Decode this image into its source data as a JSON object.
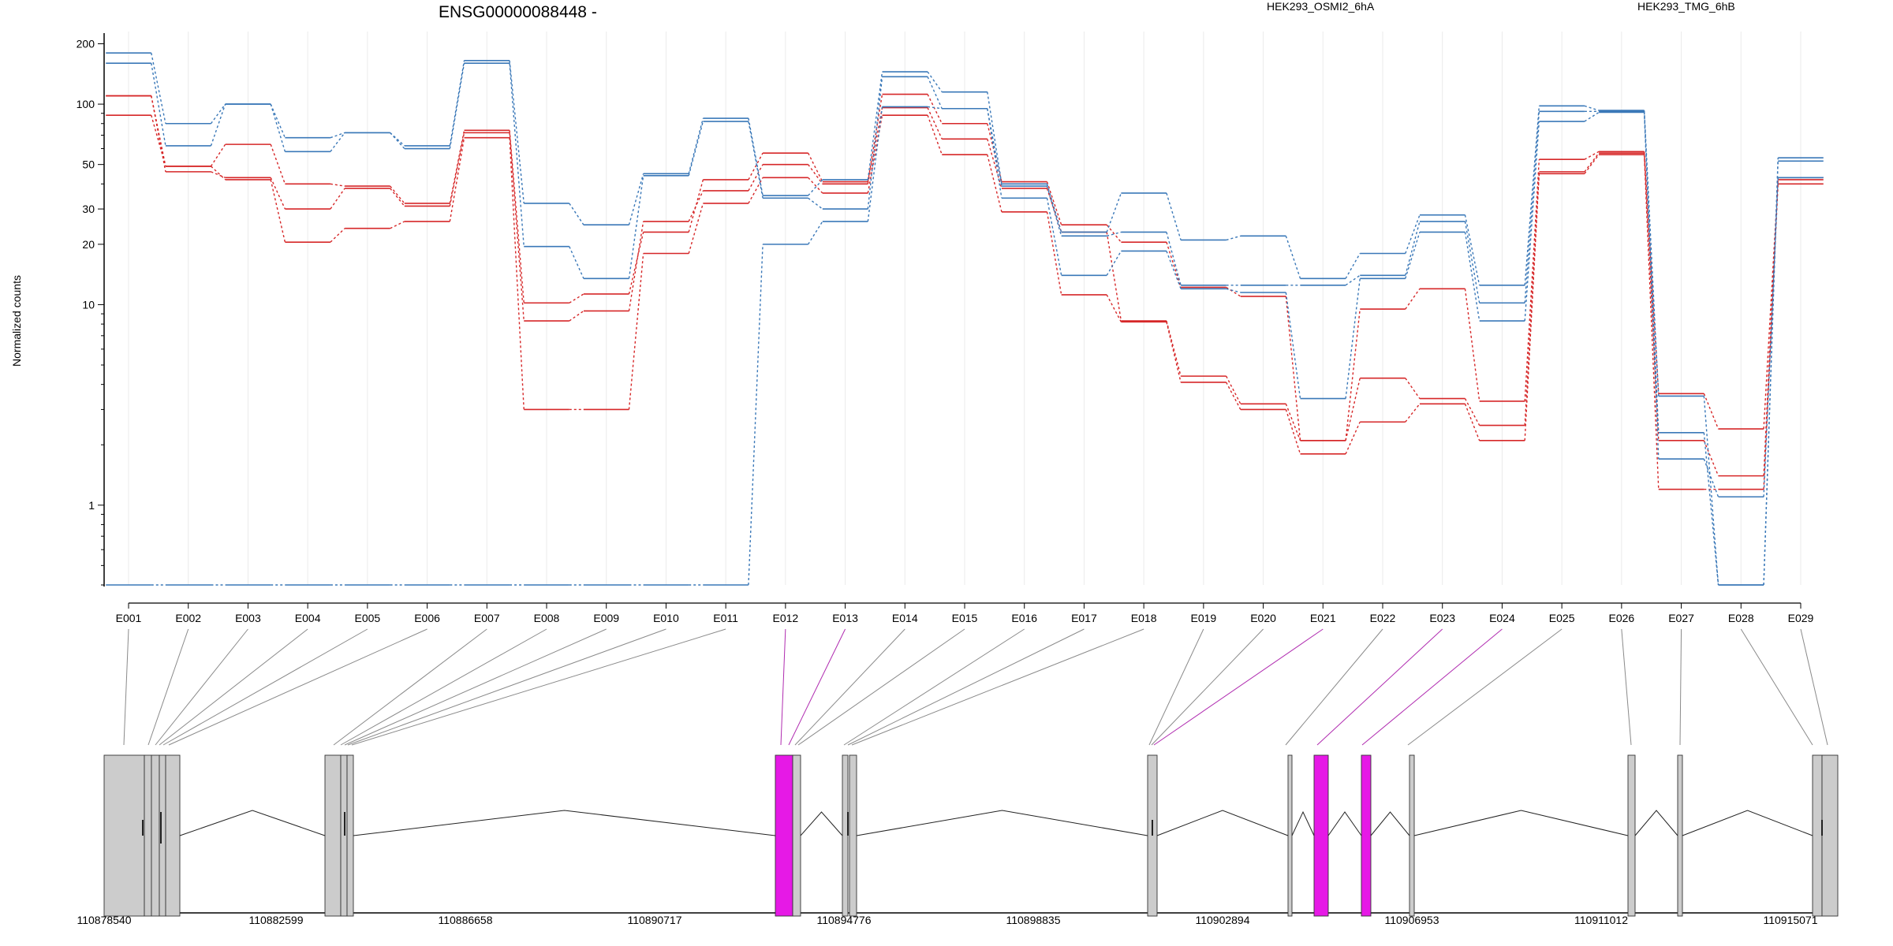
{
  "chart_data": {
    "type": "line",
    "title": "ENSG00000088448 -",
    "ylabel": "Normalized counts",
    "yscale": "log",
    "ylim": [
      0.4,
      220
    ],
    "yticks": [
      1,
      10,
      20,
      30,
      50,
      100,
      200
    ],
    "grid": true,
    "legend_placement": "top-right",
    "categories": [
      "E001",
      "E002",
      "E003",
      "E004",
      "E005",
      "E006",
      "E007",
      "E008",
      "E009",
      "E010",
      "E011",
      "E012",
      "E013",
      "E014",
      "E015",
      "E016",
      "E017",
      "E018",
      "E019",
      "E020",
      "E021",
      "E022",
      "E023",
      "E024",
      "E025",
      "E026",
      "E027",
      "E028",
      "E029"
    ],
    "legend": [
      {
        "label": "HEK293_OSMI2_6hA",
        "color": "#d62728"
      },
      {
        "label": "HEK293_TMG_6hB",
        "color": "#3a78b8"
      }
    ],
    "series": [
      {
        "group": 0,
        "color": "#d62728",
        "values": [
          110,
          49,
          63,
          40,
          39,
          32,
          74,
          10.2,
          11.3,
          23,
          42,
          57,
          41,
          112,
          80,
          41,
          25,
          20.5,
          12.2,
          11,
          2.1,
          9.5,
          12,
          3.3,
          53,
          58,
          3.6,
          2.4,
          42
        ]
      },
      {
        "group": 0,
        "color": "#d62728",
        "values": [
          110,
          46,
          43,
          30,
          38,
          31,
          72,
          8.3,
          9.3,
          26,
          37,
          50,
          40,
          96,
          67,
          38,
          23,
          8.3,
          4.4,
          3.2,
          2.1,
          4.3,
          3.4,
          2.5,
          46,
          57,
          2.1,
          1.4,
          43
        ]
      },
      {
        "group": 0,
        "color": "#d62728",
        "values": [
          88,
          49,
          42,
          20.5,
          24,
          26,
          68,
          3,
          3,
          18,
          32,
          43,
          36,
          88,
          56,
          29,
          11.2,
          8.2,
          4.1,
          3,
          1.8,
          2.6,
          3.2,
          2.1,
          45,
          56,
          1.2,
          1.2,
          40
        ]
      },
      {
        "group": 1,
        "color": "#3a78b8",
        "values": [
          180,
          80,
          100,
          68,
          72,
          62,
          165,
          32,
          25,
          45,
          85,
          35,
          42,
          145,
          115,
          40,
          23,
          36,
          21,
          22,
          13.5,
          18,
          28,
          12.5,
          98,
          93,
          3.5,
          0.4,
          54
        ]
      },
      {
        "group": 1,
        "color": "#3a78b8",
        "values": [
          160,
          62,
          100,
          58,
          72,
          60,
          160,
          19.5,
          13.5,
          44,
          82,
          34,
          30,
          137,
          95,
          39,
          22,
          23,
          12.5,
          12.5,
          12.5,
          14,
          26,
          10.2,
          92,
          92,
          2.3,
          0.4,
          52
        ]
      },
      {
        "group": 1,
        "color": "#3a78b8",
        "values": [
          0.4,
          0.4,
          0.4,
          0.4,
          0.4,
          0.4,
          0.4,
          0.4,
          0.4,
          0.4,
          0.4,
          20,
          26,
          97,
          95,
          34,
          14,
          18.5,
          12,
          11.5,
          3.4,
          13.5,
          23,
          8.3,
          82,
          91,
          1.7,
          1.1,
          43
        ]
      }
    ],
    "gene_model": {
      "coordinate_ticks": [
        "110878540",
        "110882599",
        "110886658",
        "110890717",
        "110894776",
        "110898835",
        "110902894",
        "110906953",
        "110911012",
        "110915071"
      ],
      "highlight_color": "#e619e6",
      "exon_fill": "#cccccc",
      "highlighted_exons": [
        "E012",
        "E021",
        "E022",
        "E023"
      ]
    }
  }
}
